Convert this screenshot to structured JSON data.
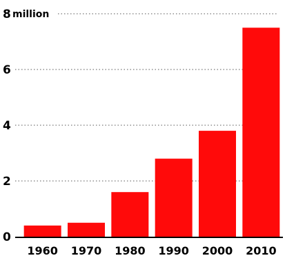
{
  "chart_data": {
    "type": "bar",
    "categories": [
      "1960",
      "1970",
      "1980",
      "1990",
      "2000",
      "2010"
    ],
    "values": [
      0.4,
      0.5,
      1.6,
      2.8,
      3.8,
      7.5
    ],
    "ylim": [
      0,
      8
    ],
    "yticks": [
      0,
      2,
      4,
      6,
      8
    ],
    "ytick_labels": [
      "0",
      "2",
      "4",
      "6",
      "8"
    ],
    "y_unit_label": "million",
    "grid": true,
    "colors": {
      "bar": "#ff0a0a",
      "axis": "#000000",
      "grid": "#777777"
    }
  }
}
